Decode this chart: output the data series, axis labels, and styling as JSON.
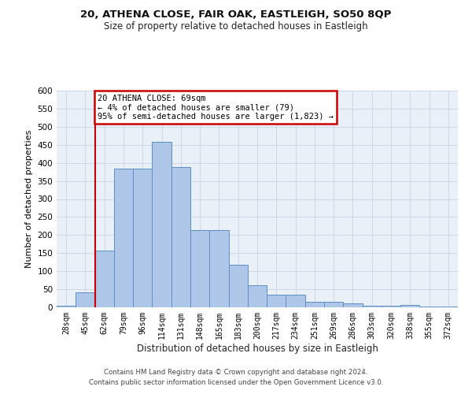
{
  "title": "20, ATHENA CLOSE, FAIR OAK, EASTLEIGH, SO50 8QP",
  "subtitle": "Size of property relative to detached houses in Eastleigh",
  "xlabel": "Distribution of detached houses by size in Eastleigh",
  "ylabel": "Number of detached properties",
  "bin_labels": [
    "28sqm",
    "45sqm",
    "62sqm",
    "79sqm",
    "96sqm",
    "114sqm",
    "131sqm",
    "148sqm",
    "165sqm",
    "183sqm",
    "200sqm",
    "217sqm",
    "234sqm",
    "251sqm",
    "269sqm",
    "286sqm",
    "303sqm",
    "320sqm",
    "338sqm",
    "355sqm",
    "372sqm"
  ],
  "bar_values": [
    5,
    42,
    158,
    385,
    385,
    458,
    388,
    213,
    213,
    118,
    62,
    35,
    35,
    15,
    15,
    10,
    5,
    5,
    7,
    2,
    2
  ],
  "bar_color": "#aec6e8",
  "bar_edge_color": "#5a8fc2",
  "grid_color": "#d0d8e8",
  "background_color": "#eaf0f8",
  "annotation_text": "20 ATHENA CLOSE: 69sqm\n← 4% of detached houses are smaller (79)\n95% of semi-detached houses are larger (1,823) →",
  "annotation_box_color": "#ffffff",
  "annotation_box_edge": "#cc0000",
  "vline_color": "#cc0000",
  "vline_x_bin": 2,
  "ylim": [
    0,
    600
  ],
  "yticks": [
    0,
    50,
    100,
    150,
    200,
    250,
    300,
    350,
    400,
    450,
    500,
    550,
    600
  ],
  "footer_line1": "Contains HM Land Registry data © Crown copyright and database right 2024.",
  "footer_line2": "Contains public sector information licensed under the Open Government Licence v3.0."
}
